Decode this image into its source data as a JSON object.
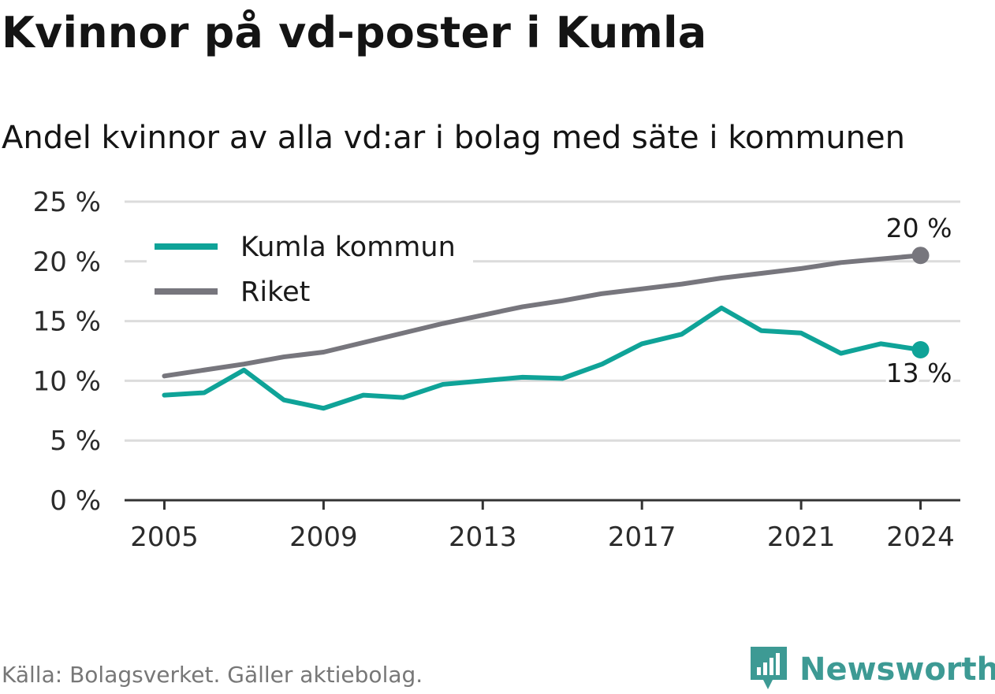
{
  "header": {
    "title": "Kvinnor på vd-poster i Kumla",
    "subtitle": "Andel kvinnor av alla vd:ar i bolag med säte i kommunen"
  },
  "footer": {
    "source": "Källa: Bolagsverket. Gäller aktiebolag.",
    "brand": "Newsworthy"
  },
  "colors": {
    "kumla": "#0fa398",
    "riket": "#77767d",
    "grid": "#dcdcdc",
    "axis": "#333333",
    "brand": "#3d9a94"
  },
  "icons": {
    "brand_logo": "newsworthy-logo-icon"
  },
  "chart_data": {
    "type": "line",
    "title": "Kvinnor på vd-poster i Kumla",
    "subtitle": "Andel kvinnor av alla vd:ar i bolag med säte i kommunen",
    "xlabel": "",
    "ylabel": "",
    "x": [
      2005,
      2006,
      2007,
      2008,
      2009,
      2010,
      2011,
      2012,
      2013,
      2014,
      2015,
      2016,
      2017,
      2018,
      2019,
      2020,
      2021,
      2022,
      2023,
      2024
    ],
    "xlim": [
      2004,
      2025
    ],
    "ylim": [
      0,
      25
    ],
    "x_ticks": [
      2005,
      2009,
      2013,
      2017,
      2021,
      2024
    ],
    "x_tick_labels": [
      "2005",
      "2009",
      "2013",
      "2017",
      "2021",
      "2024"
    ],
    "y_ticks": [
      0,
      5,
      10,
      15,
      20,
      25
    ],
    "y_tick_labels": [
      "0 %",
      "5 %",
      "10 %",
      "15 %",
      "20 %",
      "25 %"
    ],
    "grid": true,
    "legend": "top-left",
    "series": [
      {
        "name": "Kumla kommun",
        "color": "#0fa398",
        "values": [
          8.8,
          9.0,
          10.9,
          8.4,
          7.7,
          8.8,
          8.6,
          9.7,
          10.0,
          10.3,
          10.2,
          11.4,
          13.1,
          13.9,
          16.1,
          14.2,
          14.0,
          12.3,
          13.1,
          12.6
        ],
        "end_label": "13 %"
      },
      {
        "name": "Riket",
        "color": "#77767d",
        "values": [
          10.4,
          10.9,
          11.4,
          12.0,
          12.4,
          13.2,
          14.0,
          14.8,
          15.5,
          16.2,
          16.7,
          17.3,
          17.7,
          18.1,
          18.6,
          19.0,
          19.4,
          19.9,
          20.2,
          20.5
        ],
        "end_label": "20 %"
      }
    ]
  }
}
